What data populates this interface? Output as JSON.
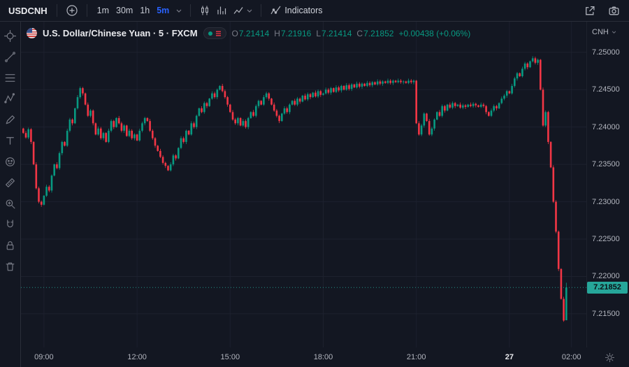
{
  "topbar": {
    "symbol": "USDCNH",
    "timeframes": [
      "1m",
      "30m",
      "1h",
      "5m"
    ],
    "active_timeframe": "5m",
    "indicators_label": "Indicators"
  },
  "sidebar": {
    "tools": [
      "crosshair",
      "trend-line",
      "fib-retracement",
      "xabcd-pattern",
      "brush",
      "text",
      "emoji",
      "measure",
      "zoom-in",
      "magnet",
      "lock",
      "trash"
    ]
  },
  "header": {
    "flag": "us-flag",
    "title": "U.S. Dollar/Chinese Yuan · 5 · FXCM",
    "ohlc_labels": {
      "o": "O",
      "h": "H",
      "l": "L",
      "c": "C"
    },
    "ohlc": {
      "open": "7.21414",
      "high": "7.21916",
      "low": "7.21414",
      "close": "7.21852"
    },
    "change": "+0.00438 (+0.06%)"
  },
  "price_axis": {
    "currency_label": "CNH",
    "ticks": [
      "7.25000",
      "7.24500",
      "7.24000",
      "7.23500",
      "7.23000",
      "7.22500",
      "7.22000",
      "7.21500"
    ],
    "last_price_label": "7.21852"
  },
  "time_axis": {
    "ticks": [
      {
        "label": "09:00",
        "i": 8
      },
      {
        "label": "12:00",
        "i": 44
      },
      {
        "label": "15:00",
        "i": 80
      },
      {
        "label": "18:00",
        "i": 116
      },
      {
        "label": "21:00",
        "i": 152
      },
      {
        "label": "27",
        "i": 188,
        "emphasis": true
      },
      {
        "label": "02:00",
        "i": 212
      }
    ]
  },
  "chart_data": {
    "type": "candlestick",
    "symbol": "USDCNH",
    "exchange": "FXCM",
    "interval_minutes": 5,
    "ylim": [
      7.2105,
      7.2541
    ],
    "first_open": 7.2398,
    "closes": [
      7.2392,
      7.2386,
      7.2397,
      7.238,
      7.235,
      7.2318,
      7.23,
      7.2296,
      7.2308,
      7.232,
      7.2315,
      7.2335,
      7.235,
      7.2345,
      7.2365,
      7.238,
      7.2375,
      7.2395,
      7.241,
      7.2405,
      7.2425,
      7.244,
      7.2452,
      7.2445,
      7.243,
      7.2415,
      7.2422,
      7.2405,
      7.239,
      7.2398,
      7.2385,
      7.2392,
      7.238,
      7.2395,
      7.2408,
      7.24,
      7.2412,
      7.2405,
      7.2395,
      7.2402,
      7.2388,
      7.2395,
      7.2385,
      7.239,
      7.2382,
      7.2395,
      7.2405,
      7.2412,
      7.2408,
      7.2395,
      7.2385,
      7.2375,
      7.2368,
      7.236,
      7.2352,
      7.2348,
      7.2342,
      7.235,
      7.2362,
      7.2358,
      7.2372,
      7.2385,
      7.238,
      7.2395,
      7.239,
      7.2405,
      7.24,
      7.2415,
      7.2425,
      7.242,
      7.2432,
      7.2428,
      7.2438,
      7.2445,
      7.244,
      7.245,
      7.2455,
      7.2448,
      7.244,
      7.243,
      7.242,
      7.241,
      7.2405,
      7.2412,
      7.2402,
      7.2408,
      7.24,
      7.2412,
      7.242,
      7.2415,
      7.2428,
      7.2435,
      7.243,
      7.244,
      7.2445,
      7.2438,
      7.243,
      7.2422,
      7.2415,
      7.2408,
      7.2418,
      7.2425,
      7.242,
      7.243,
      7.2435,
      7.243,
      7.2438,
      7.2434,
      7.2442,
      7.2437,
      7.2444,
      7.244,
      7.2446,
      7.2441,
      7.2448,
      7.2443,
      7.2445,
      7.245,
      7.2446,
      7.2452,
      7.2447,
      7.2453,
      7.2449,
      7.2455,
      7.245,
      7.2456,
      7.2451,
      7.2457,
      7.2453,
      7.2458,
      7.2454,
      7.2458,
      7.2455,
      7.2459,
      7.2456,
      7.246,
      7.2457,
      7.2461,
      7.2458,
      7.2461,
      7.2459,
      7.2462,
      7.2459,
      7.2462,
      7.246,
      7.2462,
      7.246,
      7.2461,
      7.2459,
      7.2462,
      7.246,
      7.2462,
      7.2405,
      7.239,
      7.2402,
      7.2418,
      7.2408,
      7.239,
      7.2398,
      7.241,
      7.242,
      7.2415,
      7.2428,
      7.2422,
      7.243,
      7.2426,
      7.2432,
      7.2428,
      7.243,
      7.2426,
      7.2429,
      7.2427,
      7.243,
      7.2428,
      7.2431,
      7.2429,
      7.2427,
      7.243,
      7.2428,
      7.242,
      7.2415,
      7.2422,
      7.2428,
      7.2425,
      7.2432,
      7.2438,
      7.2442,
      7.2448,
      7.2445,
      7.2455,
      7.2465,
      7.2472,
      7.2468,
      7.2478,
      7.2485,
      7.248,
      7.2488,
      7.2492,
      7.2486,
      7.249,
      7.245,
      7.2402,
      7.242,
      7.238,
      7.2346,
      7.23,
      7.226,
      7.221,
      7.217,
      7.2141,
      7.21852
    ],
    "last_candle": {
      "open": 7.21414,
      "high": 7.21916,
      "low": 7.21414,
      "close": 7.21852
    },
    "colors": {
      "up": "#089981",
      "down": "#f23645",
      "accent": "#2962ff",
      "last_price_line": "#26a69a",
      "tag_bg": "#26a69a",
      "tag_text": "#0c1016"
    }
  }
}
